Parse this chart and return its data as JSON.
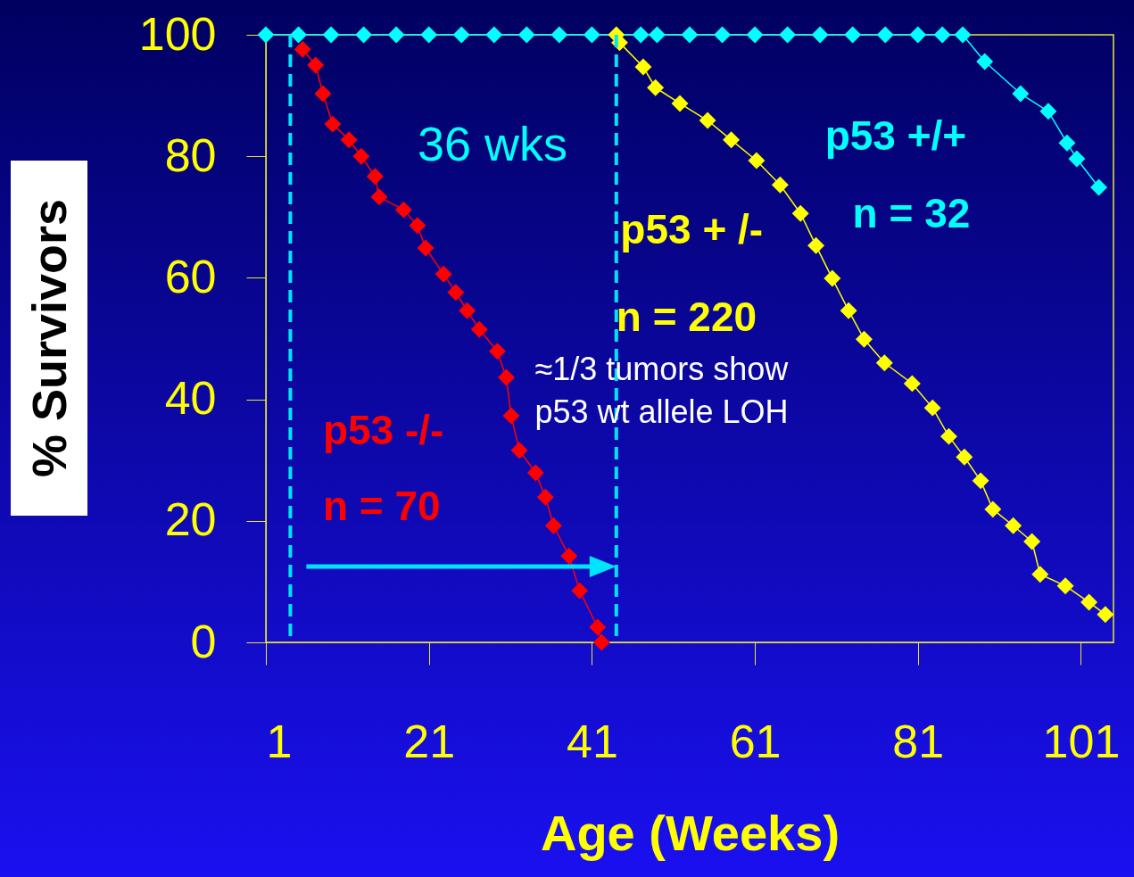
{
  "chart_data": {
    "type": "line",
    "xlabel": "Age (Weeks)",
    "ylabel": "% Survivors",
    "xlim": [
      1,
      105
    ],
    "xticks": [
      1,
      21,
      41,
      61,
      81,
      101
    ],
    "ylim": [
      0,
      100
    ],
    "yticks": [
      0,
      20,
      40,
      60,
      80,
      100
    ],
    "grid": false,
    "marker": "diamond",
    "line_style": "solid",
    "annotations": [
      "36 wks",
      "n = 70",
      "n = 220",
      "n = 32",
      "≈1/3 tumors show\np53 wt allele LOH"
    ],
    "ref_lines": [
      {
        "axis": "x",
        "value": 4,
        "color": "#00e5ff",
        "line_style": "dashed"
      },
      {
        "axis": "x",
        "value": 44,
        "color": "#00e5ff",
        "line_style": "dashed"
      }
    ],
    "series": [
      {
        "name": "p53 -/-",
        "color": "#ff0000",
        "x": [
          5.5,
          7.1,
          8,
          9.2,
          11.2,
          12.7,
          14.4,
          14.9,
          17.9,
          19.6,
          20.6,
          22.8,
          24.3,
          25.7,
          27.2,
          29.4,
          30.5,
          31.1,
          32.1,
          34.1,
          35.3,
          36.3,
          38.2,
          39.5,
          41.7,
          42.2
        ],
        "values": [
          97.6,
          95,
          90.3,
          85.3,
          82.7,
          80,
          76.7,
          73.3,
          71.2,
          68.6,
          64.9,
          60.6,
          57.6,
          54.6,
          51.5,
          47.9,
          43.6,
          37.3,
          31.6,
          27.9,
          23.9,
          19.2,
          14.2,
          8.5,
          2.5,
          0
        ]
      },
      {
        "name": "p53 + /-",
        "color": "#ffff00",
        "x": [
          44,
          44.4,
          47.3,
          48.8,
          51.8,
          55.2,
          58.1,
          61.2,
          64.1,
          66.6,
          68.5,
          70.5,
          72.5,
          74.4,
          76.9,
          80.3,
          82.8,
          84.8,
          86.7,
          88.7,
          90.2,
          92.7,
          95,
          96,
          99.1,
          102,
          104
        ],
        "values": [
          100,
          98.7,
          94.7,
          91.3,
          88.7,
          85.9,
          82.7,
          79.3,
          75.3,
          70.6,
          65.3,
          59.9,
          54.6,
          49.9,
          46,
          42.6,
          38.6,
          33.9,
          30.5,
          26.6,
          21.9,
          19.2,
          16.6,
          11.2,
          9.3,
          6.6,
          4.6
        ]
      },
      {
        "name": "p53 +/+",
        "color": "#00ffff",
        "x": [
          1,
          5,
          9,
          13,
          17,
          21,
          25,
          29,
          33,
          37,
          41,
          47,
          49,
          53,
          57,
          61,
          65,
          69,
          73,
          77,
          81,
          84,
          86.5,
          89.2,
          93.6,
          97,
          99.3,
          100.5,
          103.2
        ],
        "values": [
          100,
          100,
          100,
          100,
          100,
          100,
          100,
          100,
          100,
          100,
          100,
          100,
          100,
          100,
          100,
          100,
          100,
          100,
          100,
          100,
          100,
          100,
          100,
          95.6,
          90.3,
          87.4,
          82.2,
          79.6,
          74.9
        ]
      }
    ]
  }
}
